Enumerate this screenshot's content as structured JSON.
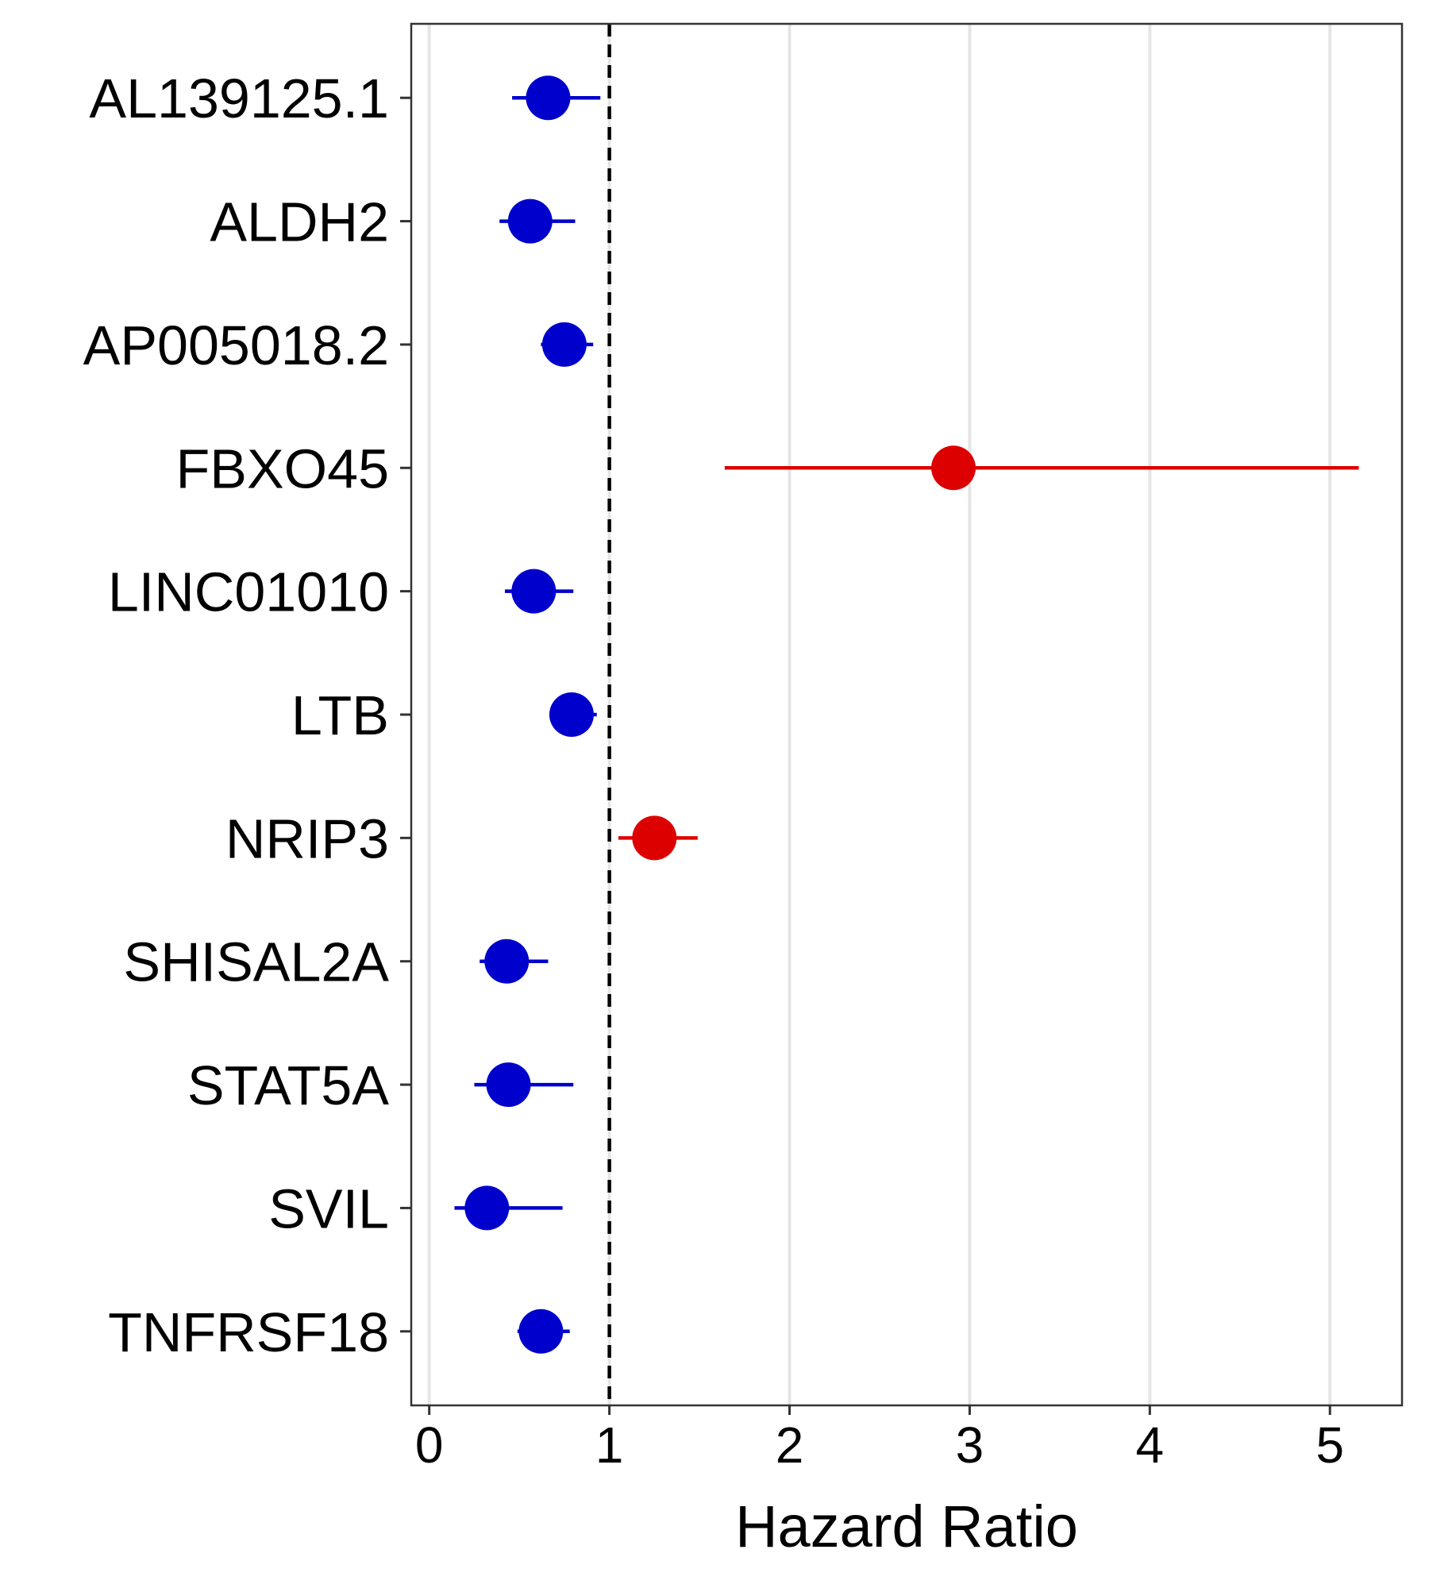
{
  "chart_data": {
    "type": "forest",
    "title": "",
    "xlabel": "Hazard Ratio",
    "ylabel": "",
    "xlim": [
      -0.1,
      5.4
    ],
    "xticks": [
      0,
      1,
      2,
      3,
      4,
      5
    ],
    "reference_line": 1,
    "grid": "vertical major",
    "colors": {
      "protective": "#0000CC",
      "risk": "#DD0000"
    },
    "rows": [
      {
        "label": "AL139125.1",
        "hr": 0.66,
        "lower": 0.46,
        "upper": 0.95,
        "color": "#0000CC"
      },
      {
        "label": "ALDH2",
        "hr": 0.56,
        "lower": 0.39,
        "upper": 0.81,
        "color": "#0000CC"
      },
      {
        "label": "AP005018.2",
        "hr": 0.75,
        "lower": 0.62,
        "upper": 0.91,
        "color": "#0000CC"
      },
      {
        "label": "FBXO45",
        "hr": 2.91,
        "lower": 1.64,
        "upper": 5.16,
        "color": "#DD0000"
      },
      {
        "label": "LINC01010",
        "hr": 0.58,
        "lower": 0.42,
        "upper": 0.8,
        "color": "#0000CC"
      },
      {
        "label": "LTB",
        "hr": 0.79,
        "lower": 0.67,
        "upper": 0.93,
        "color": "#0000CC"
      },
      {
        "label": "NRIP3",
        "hr": 1.25,
        "lower": 1.05,
        "upper": 1.49,
        "color": "#DD0000"
      },
      {
        "label": "SHISAL2A",
        "hr": 0.43,
        "lower": 0.28,
        "upper": 0.66,
        "color": "#0000CC"
      },
      {
        "label": "STAT5A",
        "hr": 0.44,
        "lower": 0.25,
        "upper": 0.8,
        "color": "#0000CC"
      },
      {
        "label": "SVIL",
        "hr": 0.32,
        "lower": 0.14,
        "upper": 0.74,
        "color": "#0000CC"
      },
      {
        "label": "TNFRSF18",
        "hr": 0.62,
        "lower": 0.49,
        "upper": 0.78,
        "color": "#0000CC"
      }
    ]
  }
}
